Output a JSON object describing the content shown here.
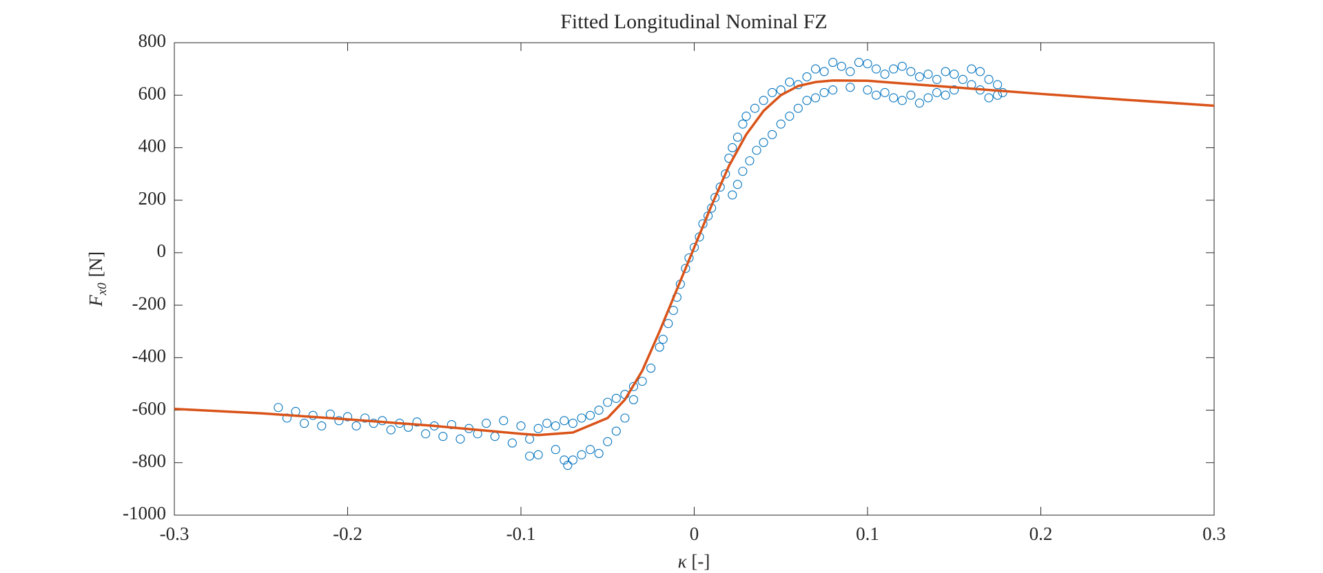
{
  "chart_data": {
    "type": "scatter",
    "title": "Fitted Longitudinal Nominal FZ",
    "xlabel": {
      "symbol": "κ",
      "unit": "[-]"
    },
    "ylabel": {
      "symbol": "F",
      "subscript": "x0",
      "unit": "[N]"
    },
    "xlim": [
      -0.3,
      0.3
    ],
    "xticks": [
      -0.3,
      -0.2,
      -0.1,
      0,
      0.1,
      0.2,
      0.3
    ],
    "ylim": [
      -1000,
      800
    ],
    "yticks": [
      -1000,
      -800,
      -600,
      -400,
      -200,
      0,
      200,
      400,
      600,
      800
    ],
    "series": [
      {
        "type": "scatter",
        "marker": "circle",
        "color": "#0072BD",
        "x": [
          -0.24,
          -0.235,
          -0.23,
          -0.225,
          -0.22,
          -0.215,
          -0.21,
          -0.205,
          -0.2,
          -0.195,
          -0.19,
          -0.185,
          -0.18,
          -0.175,
          -0.17,
          -0.165,
          -0.16,
          -0.155,
          -0.15,
          -0.145,
          -0.14,
          -0.135,
          -0.13,
          -0.125,
          -0.12,
          -0.115,
          -0.11,
          -0.105,
          -0.1,
          -0.095,
          -0.09,
          -0.085,
          -0.08,
          -0.095,
          -0.09,
          -0.08,
          -0.075,
          -0.073,
          -0.07,
          -0.065,
          -0.06,
          -0.055,
          -0.05,
          -0.045,
          -0.04,
          -0.035,
          -0.075,
          -0.07,
          -0.065,
          -0.06,
          -0.055,
          -0.05,
          -0.045,
          -0.04,
          -0.035,
          -0.03,
          -0.025,
          -0.02,
          -0.018,
          -0.015,
          -0.012,
          -0.01,
          -0.008,
          -0.005,
          -0.003,
          0,
          0.003,
          0.005,
          0.008,
          0.01,
          0.012,
          0.015,
          0.018,
          0.02,
          0.022,
          0.025,
          0.028,
          0.03,
          0.035,
          0.04,
          0.045,
          0.05,
          0.055,
          0.06,
          0.065,
          0.07,
          0.075,
          0.08,
          0.085,
          0.09,
          0.095,
          0.1,
          0.105,
          0.11,
          0.115,
          0.12,
          0.125,
          0.13,
          0.135,
          0.14,
          0.145,
          0.15,
          0.155,
          0.16,
          0.165,
          0.17,
          0.175,
          0.022,
          0.025,
          0.028,
          0.032,
          0.036,
          0.04,
          0.045,
          0.05,
          0.055,
          0.06,
          0.065,
          0.07,
          0.075,
          0.08,
          0.09,
          0.1,
          0.105,
          0.11,
          0.115,
          0.12,
          0.125,
          0.13,
          0.135,
          0.14,
          0.145,
          0.15,
          0.16,
          0.165,
          0.17,
          0.175,
          0.178
        ],
        "values": [
          -590,
          -630,
          -605,
          -650,
          -620,
          -660,
          -615,
          -640,
          -625,
          -660,
          -630,
          -650,
          -640,
          -675,
          -650,
          -665,
          -645,
          -690,
          -660,
          -700,
          -655,
          -710,
          -670,
          -690,
          -650,
          -700,
          -640,
          -725,
          -660,
          -710,
          -670,
          -650,
          -660,
          -775,
          -770,
          -750,
          -790,
          -810,
          -790,
          -770,
          -750,
          -765,
          -720,
          -680,
          -630,
          -560,
          -640,
          -650,
          -630,
          -620,
          -600,
          -570,
          -555,
          -540,
          -510,
          -490,
          -440,
          -360,
          -330,
          -270,
          -220,
          -170,
          -120,
          -60,
          -20,
          20,
          60,
          110,
          140,
          170,
          210,
          250,
          300,
          360,
          400,
          440,
          490,
          520,
          550,
          580,
          610,
          620,
          650,
          640,
          670,
          700,
          690,
          725,
          710,
          690,
          725,
          720,
          700,
          680,
          700,
          710,
          690,
          670,
          680,
          660,
          690,
          680,
          660,
          700,
          690,
          660,
          640,
          220,
          260,
          310,
          350,
          390,
          420,
          450,
          490,
          520,
          550,
          580,
          590,
          610,
          620,
          630,
          620,
          600,
          610,
          590,
          580,
          600,
          570,
          590,
          610,
          600,
          620,
          640,
          620,
          590,
          600,
          610
        ]
      },
      {
        "type": "line",
        "color": "#D95319",
        "x": [
          -0.3,
          -0.25,
          -0.2,
          -0.15,
          -0.1,
          -0.09,
          -0.07,
          -0.05,
          -0.04,
          -0.03,
          -0.02,
          -0.01,
          0,
          0.01,
          0.02,
          0.03,
          0.04,
          0.05,
          0.06,
          0.07,
          0.08,
          0.1,
          0.12,
          0.15,
          0.2,
          0.25,
          0.3
        ],
        "values": [
          -595,
          -612,
          -635,
          -660,
          -690,
          -695,
          -685,
          -630,
          -560,
          -450,
          -300,
          -140,
          20,
          180,
          330,
          450,
          540,
          600,
          635,
          650,
          656,
          655,
          645,
          630,
          605,
          582,
          560
        ]
      }
    ]
  }
}
